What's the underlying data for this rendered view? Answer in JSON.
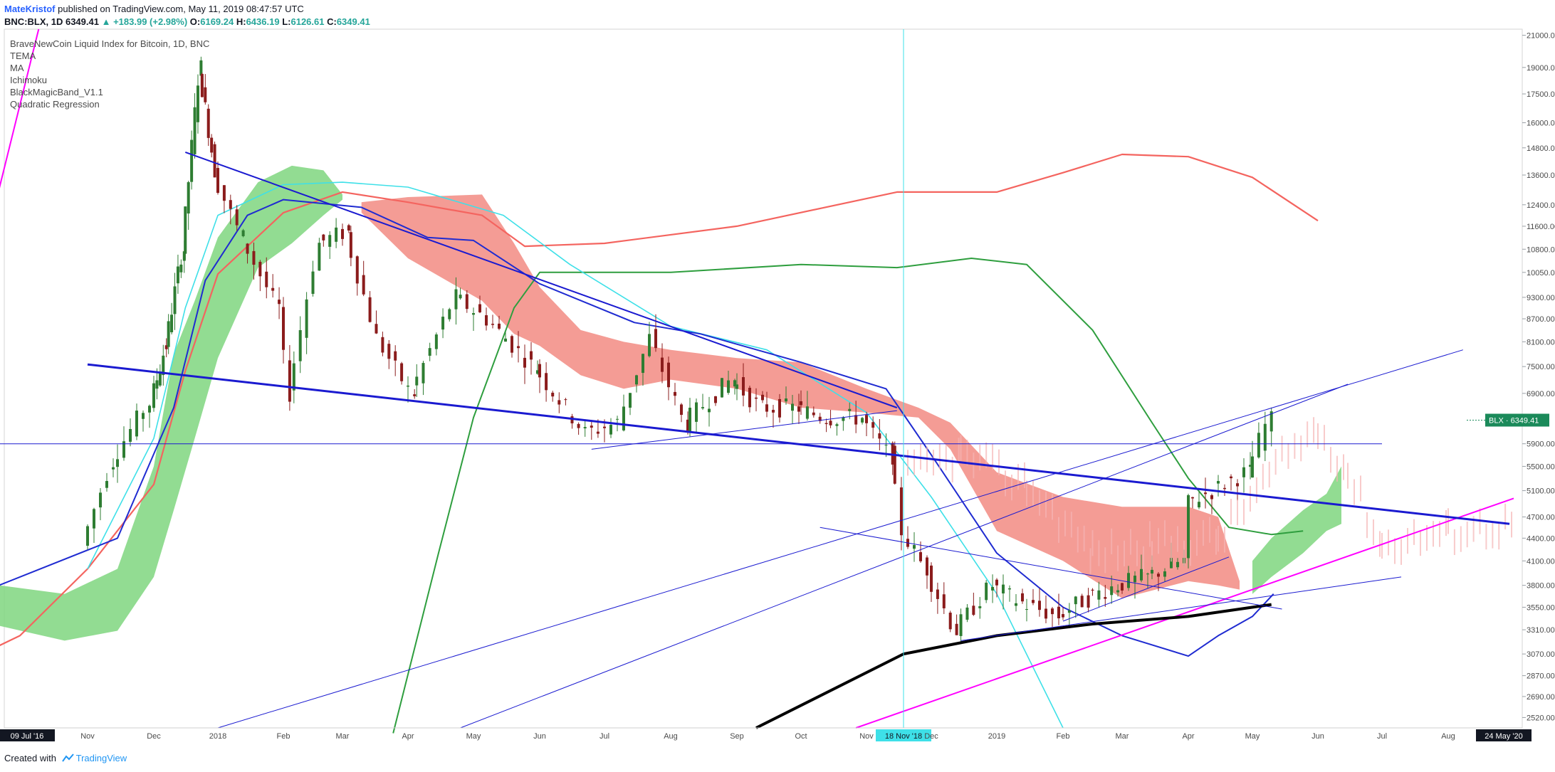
{
  "header": {
    "author": "MateKristof",
    "published": "published on TradingView.com, May 11, 2019 08:47:57 UTC",
    "symbol": "BNC:BLX, 1D",
    "change": "▲ +183.99 (+2.98%)",
    "ohlc": {
      "last": "6349.41",
      "o_label": "O:",
      "o": "6169.24",
      "h_label": "H:",
      "h": "6436.19",
      "l_label": "L:",
      "l": "6126.61",
      "c_label": "C:",
      "c": "6349.41"
    }
  },
  "legend": [
    "BraveNewCoin Liquid Index for Bitcoin, 1D, BNC",
    "TEMA",
    "MA",
    "Ichimoku",
    "BlackMagicBand_V1.1",
    "Quadratic Regression"
  ],
  "footer": {
    "created_with": "Created with",
    "brand": "TradingView"
  },
  "colors": {
    "up": "#26a69a",
    "candle_up": "#2e7d32",
    "candle_down": "#8b1c1c",
    "cloud_green": "#7fd67f",
    "cloud_red": "#f28b82",
    "red_ma": "#f4645f",
    "green_ma": "#2e9e3e",
    "cyan_ma": "#3ee0e8",
    "blue_ma": "#1f2bd1",
    "magenta": "#ff00ff",
    "trend_blue": "#1a1ad0",
    "black_reg": "#000000",
    "axis_text": "#4a4a4a",
    "price_tag": "#1b8a5a"
  },
  "chart_data": {
    "type": "candlestick",
    "title": "BraveNewCoin Liquid Index for Bitcoin, 1D, BNC",
    "scale": "log",
    "ylim": [
      2440,
      21400
    ],
    "y_ticks": [
      "21000.00",
      "19000.00",
      "17500.00",
      "16000.00",
      "14800.00",
      "13600.00",
      "12400.00",
      "11600.00",
      "10800.00",
      "10050.00",
      "9300.00",
      "8700.00",
      "8100.00",
      "7500.00",
      "6900.00",
      "6349.41",
      "5900.00",
      "5500.00",
      "5100.00",
      "4700.00",
      "4400.00",
      "4100.00",
      "3800.00",
      "3550.00",
      "3310.00",
      "3070.00",
      "2870.00",
      "2690.00",
      "2520.00"
    ],
    "x_ticks": [
      "09 Jul '16",
      "Nov",
      "Dec",
      "2018",
      "Feb",
      "Mar",
      "Apr",
      "May",
      "Jun",
      "Jul",
      "Aug",
      "Sep",
      "Oct",
      "Nov",
      "18 Nov '18",
      "Dec",
      "2019",
      "Feb",
      "Mar",
      "Apr",
      "May",
      "Jun",
      "Jul",
      "Aug",
      "24 May '20"
    ],
    "price_label": "BLX",
    "last_price": 6349.41,
    "crosshair_x_label": "18 Nov '18",
    "range_end_label": "24 May '20",
    "price_series": {
      "name": "BLX",
      "dates": [
        "2017-10-01",
        "2017-10-15",
        "2017-11-01",
        "2017-11-15",
        "2017-12-01",
        "2017-12-17",
        "2018-01-01",
        "2018-01-15",
        "2018-02-01",
        "2018-02-06",
        "2018-02-20",
        "2018-03-05",
        "2018-03-20",
        "2018-04-05",
        "2018-04-25",
        "2018-05-10",
        "2018-06-01",
        "2018-06-25",
        "2018-07-10",
        "2018-07-25",
        "2018-08-10",
        "2018-09-01",
        "2018-09-15",
        "2018-10-01",
        "2018-10-15",
        "2018-11-01",
        "2018-11-14",
        "2018-11-20",
        "2018-12-01",
        "2018-12-15",
        "2019-01-01",
        "2019-01-15",
        "2019-02-01",
        "2019-02-15",
        "2019-03-01",
        "2019-03-15",
        "2019-04-01",
        "2019-04-03",
        "2019-04-15",
        "2019-05-01",
        "2019-05-11"
      ],
      "close": [
        4300,
        5600,
        6700,
        8000,
        10800,
        19000,
        13800,
        11200,
        9000,
        6900,
        11000,
        11400,
        8200,
        6900,
        9300,
        8700,
        7500,
        6100,
        6300,
        8200,
        6300,
        7200,
        6600,
        6600,
        6400,
        6400,
        5700,
        4500,
        4000,
        3300,
        3800,
        3600,
        3450,
        3650,
        3800,
        3900,
        4100,
        4900,
        5100,
        5400,
        6349.41
      ]
    },
    "annotations": [
      "Ichimoku cloud",
      "TEMA",
      "MA",
      "Quadratic Regression",
      "trend lines",
      "horizontal level"
    ]
  }
}
